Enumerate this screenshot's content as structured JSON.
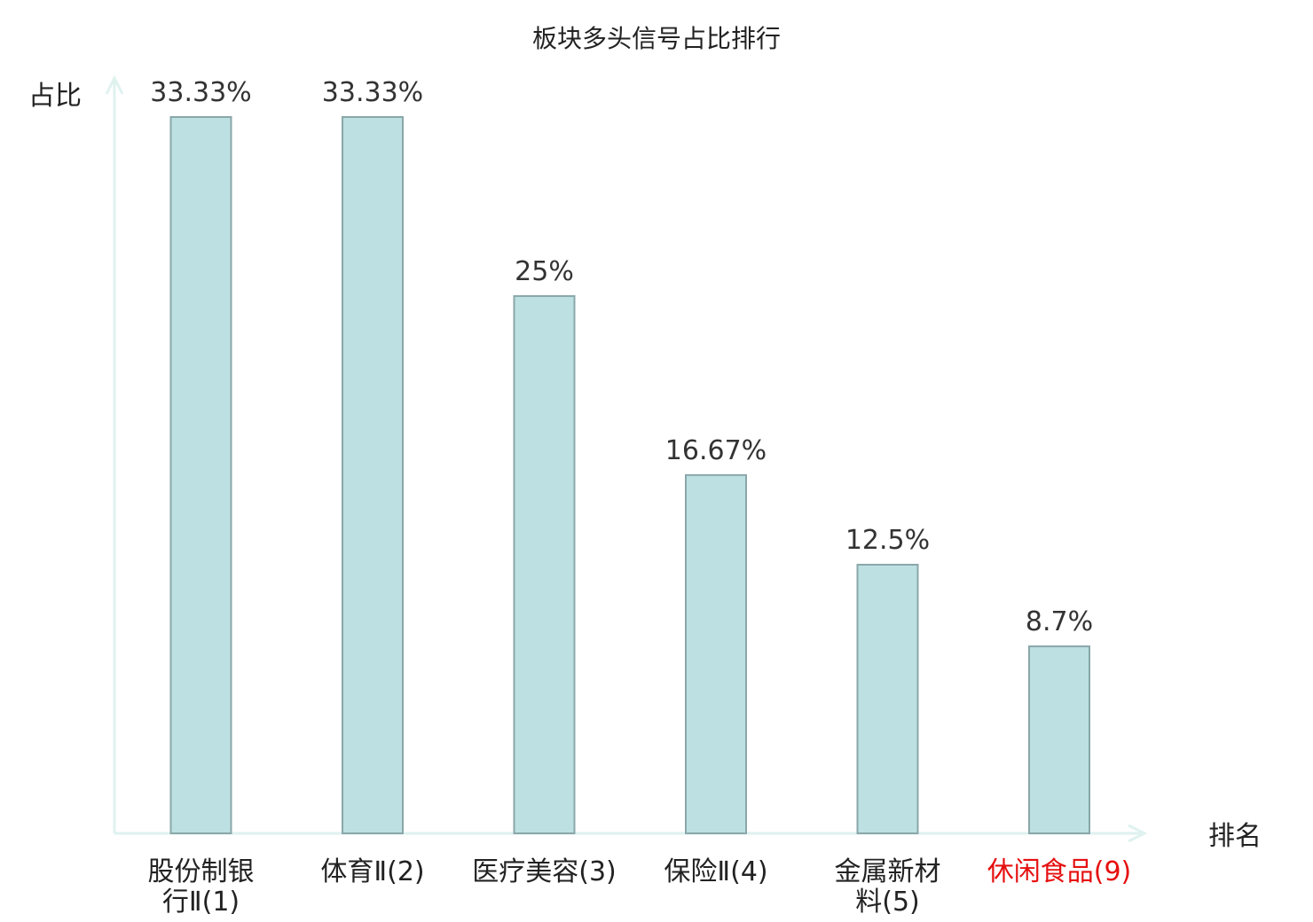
{
  "chart_data": {
    "type": "bar",
    "title": "板块多头信号占比排行",
    "ylabel": "占比",
    "xlabel": "排名",
    "ylim": [
      0,
      33.33
    ],
    "grid": false,
    "legend": "none",
    "categories": [
      "股份制银行Ⅱ(1)",
      "体育Ⅱ(2)",
      "医疗美容(3)",
      "保险Ⅱ(4)",
      "金属新材料(5)",
      "休闲食品(9)"
    ],
    "category_lines": [
      [
        "股份制银",
        "行Ⅱ(1)"
      ],
      [
        "体育Ⅱ(2)"
      ],
      [
        "医疗美容(3)"
      ],
      [
        "保险Ⅱ(4)"
      ],
      [
        "金属新材",
        "料(5)"
      ],
      [
        "休闲食品(9)"
      ]
    ],
    "values": [
      33.33,
      33.33,
      25,
      16.67,
      12.5,
      8.7
    ],
    "value_labels": [
      "33.33%",
      "33.33%",
      "25%",
      "16.67%",
      "12.5%",
      "8.7%"
    ],
    "highlight_category": "休闲食品(9)"
  },
  "colors": {
    "bar_fill": "#bde0e3",
    "bar_stroke": "#8aa7a9",
    "axis": "#dff2ef",
    "text": "#222222",
    "value_text": "#333333",
    "highlight": "#e61010"
  }
}
